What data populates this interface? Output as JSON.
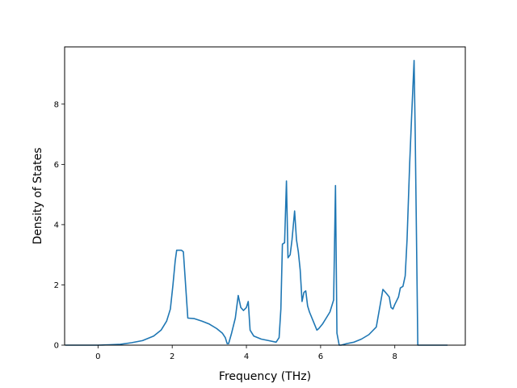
{
  "chart_data": {
    "type": "line",
    "title": "",
    "xlabel": "Frequency (THz)",
    "ylabel": "Density of States",
    "xlim": [
      -0.9,
      9.9
    ],
    "ylim": [
      0,
      9.9
    ],
    "xticks": [
      0,
      2,
      4,
      6,
      8
    ],
    "yticks": [
      0,
      2,
      4,
      6,
      8
    ],
    "grid": false,
    "legend": "none",
    "series": [
      {
        "color": "#1f77b4",
        "x": [
          -0.88,
          -0.3,
          0.0,
          0.3,
          0.6,
          0.9,
          1.2,
          1.5,
          1.7,
          1.85,
          1.95,
          2.02,
          2.08,
          2.12,
          2.25,
          2.3,
          2.42,
          2.6,
          2.8,
          3.0,
          3.2,
          3.35,
          3.43,
          3.48,
          3.52,
          3.6,
          3.7,
          3.78,
          3.85,
          3.92,
          4.0,
          4.05,
          4.1,
          4.2,
          4.4,
          4.6,
          4.8,
          4.88,
          4.93,
          4.97,
          5.03,
          5.08,
          5.12,
          5.18,
          5.23,
          5.3,
          5.35,
          5.4,
          5.45,
          5.5,
          5.55,
          5.6,
          5.65,
          5.7,
          5.8,
          5.9,
          5.95,
          6.05,
          6.15,
          6.25,
          6.35,
          6.4,
          6.44,
          6.5,
          6.55,
          6.7,
          6.9,
          7.1,
          7.3,
          7.5,
          7.6,
          7.68,
          7.75,
          7.85,
          7.9,
          7.95,
          8.0,
          8.1,
          8.15,
          8.22,
          8.28,
          8.33,
          8.4,
          8.45,
          8.52,
          8.55,
          8.6,
          8.62,
          9.42
        ],
        "y": [
          0.0,
          0.0,
          0.0,
          0.01,
          0.03,
          0.08,
          0.15,
          0.3,
          0.5,
          0.8,
          1.2,
          2.0,
          2.8,
          3.15,
          3.15,
          3.1,
          0.9,
          0.88,
          0.8,
          0.7,
          0.55,
          0.4,
          0.25,
          0.05,
          0.05,
          0.4,
          0.9,
          1.65,
          1.25,
          1.15,
          1.25,
          1.45,
          0.5,
          0.3,
          0.2,
          0.15,
          0.1,
          0.25,
          1.2,
          3.35,
          3.4,
          5.45,
          2.9,
          3.0,
          3.5,
          4.45,
          3.5,
          3.1,
          2.5,
          1.45,
          1.75,
          1.8,
          1.3,
          1.1,
          0.8,
          0.5,
          0.55,
          0.7,
          0.9,
          1.1,
          1.5,
          5.3,
          0.4,
          0.0,
          0.0,
          0.05,
          0.1,
          0.2,
          0.35,
          0.6,
          1.3,
          1.85,
          1.75,
          1.6,
          1.25,
          1.2,
          1.35,
          1.6,
          1.9,
          1.95,
          2.3,
          3.5,
          6.0,
          7.5,
          9.45,
          7.0,
          2.0,
          0.0,
          0.0
        ]
      }
    ]
  }
}
